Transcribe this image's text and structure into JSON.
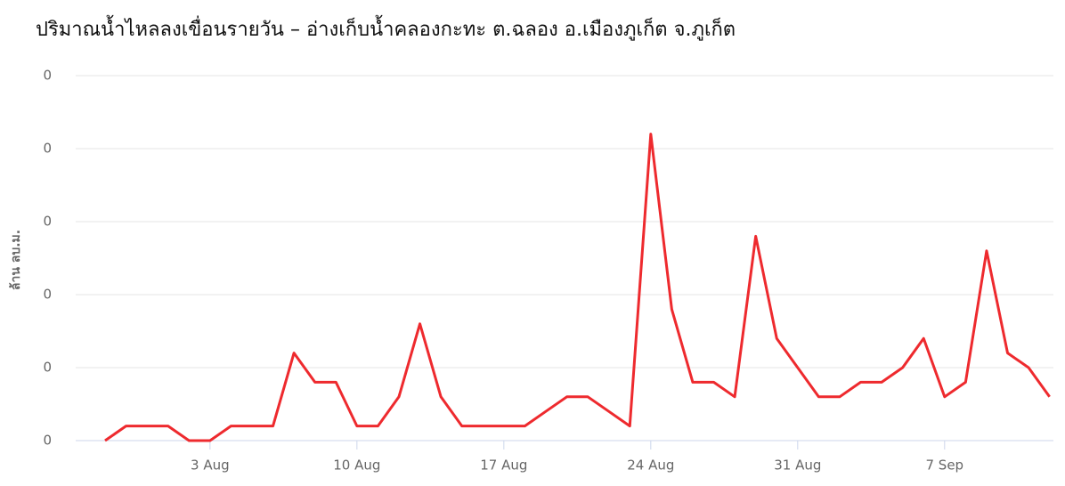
{
  "chart_data": {
    "type": "line",
    "title": "ปริมาณน้ำไหลลงเขื่อนรายวัน – อ่างเก็บน้ำคลองกะทะ ต.ฉลอง อ.เมืองภูเก็ต จ.ภูเก็ต",
    "y_label": "ล้าน ลบ.ม.",
    "categories": [
      null,
      null,
      null,
      null,
      null,
      "3 Aug",
      null,
      null,
      null,
      null,
      null,
      null,
      "10 Aug",
      null,
      null,
      null,
      null,
      null,
      null,
      "17 Aug",
      null,
      null,
      null,
      null,
      null,
      null,
      "24 Aug",
      null,
      null,
      null,
      null,
      null,
      null,
      "31 Aug",
      null,
      null,
      null,
      null,
      null,
      null,
      "7 Sep",
      null,
      null,
      null,
      null,
      null
    ],
    "series": [
      {
        "name": "ปริมาณน้ำไหลลง",
        "color": "#ee2a2e",
        "values": [
          0,
          0.0002,
          0.0002,
          0.0002,
          0,
          0,
          0.0002,
          0.0002,
          0.0002,
          0.0012,
          0.0008,
          0.0008,
          0.0002,
          0.0002,
          0.0006,
          0.0016,
          0.0006,
          0.0002,
          0.0002,
          0.0002,
          0.0002,
          0.0004,
          0.0006,
          0.0006,
          0.0004,
          0.0002,
          0.0042,
          0.0018,
          0.0008,
          0.0008,
          0.0006,
          0.0028,
          0.0014,
          0.001,
          0.0006,
          0.0006,
          0.0008,
          0.0008,
          0.001,
          0.0014,
          0.0006,
          0.0008,
          0.0026,
          0.0012,
          0.001,
          0.0006
        ]
      }
    ],
    "ylim": [
      0,
      0.005
    ],
    "yticks": [
      0,
      {
        "value": 0.001,
        "label": "0"
      },
      {
        "value": 0.002,
        "label": "0"
      },
      {
        "value": 0.003,
        "label": "0"
      },
      {
        "value": 0.004,
        "label": "0"
      },
      {
        "value": 0.005,
        "label": "0"
      }
    ],
    "grid": true
  }
}
